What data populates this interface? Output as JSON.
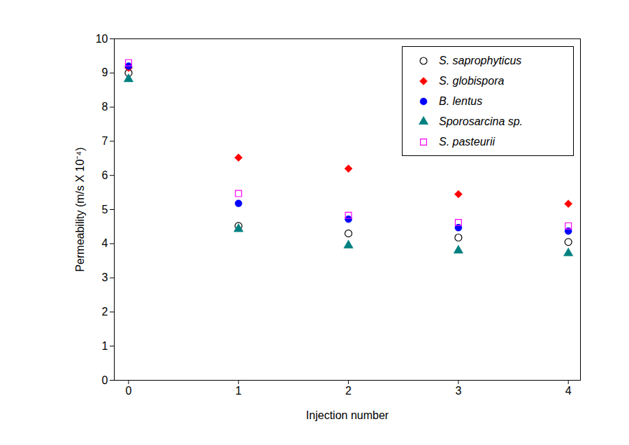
{
  "chart_data": {
    "type": "scatter",
    "x_label": "Injection number",
    "y_label": "Permeability (m/s X 10⁻⁴)",
    "x": [
      0,
      1,
      2,
      3,
      4
    ],
    "series": [
      {
        "name": "S. saprophyticus",
        "color": "#000000",
        "marker": "circle-open",
        "values": [
          9.0,
          4.52,
          4.3,
          4.18,
          4.05
        ]
      },
      {
        "name": "S. globispora",
        "color": "#ff0000",
        "marker": "diamond",
        "values": [
          9.15,
          6.52,
          6.2,
          5.45,
          5.17
        ]
      },
      {
        "name": "B. lentus",
        "color": "#0000ff",
        "marker": "circle",
        "values": [
          9.2,
          5.18,
          4.72,
          4.47,
          4.37
        ]
      },
      {
        "name": "Sporosarcina sp.",
        "color": "#008080",
        "marker": "triangle",
        "values": [
          8.82,
          4.43,
          3.95,
          3.8,
          3.72
        ]
      },
      {
        "name": "S. pasteurii",
        "color": "#ff00ff",
        "marker": "square-open",
        "values": [
          9.3,
          5.47,
          4.83,
          4.62,
          4.52
        ]
      }
    ],
    "xlim": [
      -0.13,
      4.11
    ],
    "ylim": [
      0,
      10
    ],
    "xticks": [
      0,
      1,
      2,
      3,
      4
    ],
    "yticks": [
      0,
      1,
      2,
      3,
      4,
      5,
      6,
      7,
      8,
      9,
      10
    ],
    "grid": false,
    "legend": "top-right"
  }
}
